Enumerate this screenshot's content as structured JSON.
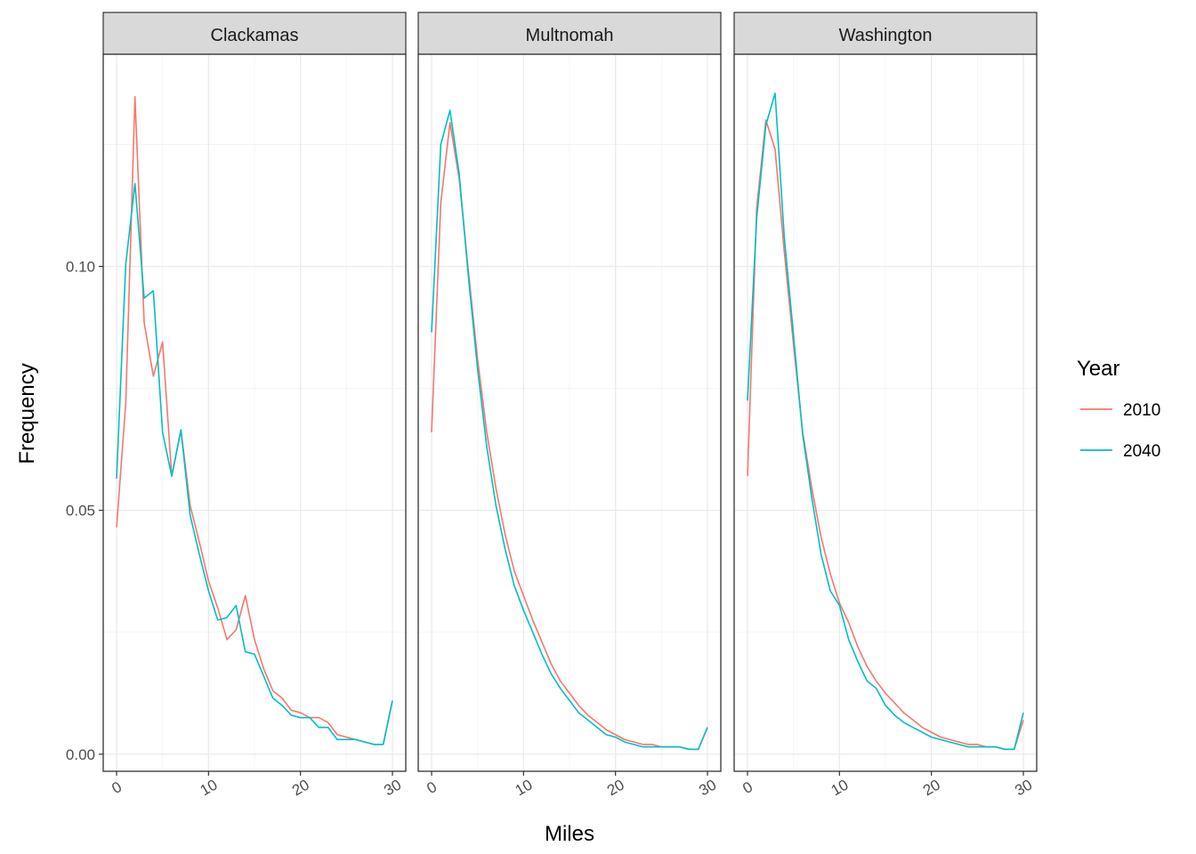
{
  "chart_data": {
    "type": "line",
    "xlabel": "Miles",
    "ylabel": "Frequency",
    "xlim": [
      0,
      30
    ],
    "ylim": [
      0,
      0.14
    ],
    "x_ticks": [
      0,
      10,
      20,
      30
    ],
    "x_tick_labels": [
      "0",
      "10",
      "20",
      "30"
    ],
    "y_ticks": [
      0,
      0.05,
      0.1
    ],
    "y_tick_labels": [
      "0.00",
      "0.05",
      "0.10"
    ],
    "grid": true,
    "legend": {
      "title": "Year",
      "position": "right",
      "entries": [
        {
          "label": "2010",
          "color": "#F8766D"
        },
        {
          "label": "2040",
          "color": "#00BFC4"
        }
      ]
    },
    "x": [
      0,
      1,
      2,
      3,
      4,
      5,
      6,
      7,
      8,
      9,
      10,
      11,
      12,
      13,
      14,
      15,
      16,
      17,
      18,
      19,
      20,
      21,
      22,
      23,
      24,
      25,
      26,
      27,
      28,
      29,
      30
    ],
    "panels": [
      {
        "title": "Clackamas",
        "series": [
          {
            "name": "2010",
            "color": "#F8766D",
            "values": [
              0.0465,
              0.072,
              0.1348,
              0.0885,
              0.0775,
              0.0845,
              0.057,
              0.0665,
              0.051,
              0.0435,
              0.0355,
              0.03,
              0.0235,
              0.0255,
              0.0325,
              0.0235,
              0.0175,
              0.013,
              0.0115,
              0.009,
              0.0085,
              0.0075,
              0.0075,
              0.0065,
              0.004,
              0.0035,
              0.003,
              0.0025,
              0.002,
              0.002,
              0.011
            ]
          },
          {
            "name": "2040",
            "color": "#00BFC4",
            "values": [
              0.0565,
              0.1005,
              0.117,
              0.0935,
              0.095,
              0.066,
              0.057,
              0.0665,
              0.049,
              0.041,
              0.0335,
              0.0275,
              0.028,
              0.0305,
              0.021,
              0.0205,
              0.016,
              0.0115,
              0.01,
              0.008,
              0.0075,
              0.0075,
              0.0055,
              0.0055,
              0.003,
              0.003,
              0.003,
              0.0025,
              0.002,
              0.002,
              0.011
            ]
          }
        ]
      },
      {
        "title": "Multnomah",
        "series": [
          {
            "name": "2010",
            "color": "#F8766D",
            "values": [
              0.066,
              0.113,
              0.1295,
              0.118,
              0.099,
              0.081,
              0.066,
              0.0545,
              0.045,
              0.0375,
              0.0325,
              0.0275,
              0.023,
              0.0185,
              0.015,
              0.0125,
              0.01,
              0.008,
              0.0065,
              0.005,
              0.004,
              0.003,
              0.0025,
              0.002,
              0.002,
              0.0015,
              0.0015,
              0.0015,
              0.001,
              0.001,
              0.0055
            ]
          },
          {
            "name": "2040",
            "color": "#00BFC4",
            "values": [
              0.0865,
              0.125,
              0.132,
              0.119,
              0.098,
              0.079,
              0.063,
              0.051,
              0.042,
              0.0345,
              0.0295,
              0.025,
              0.0205,
              0.0165,
              0.0135,
              0.011,
              0.0085,
              0.007,
              0.0055,
              0.004,
              0.0035,
              0.0025,
              0.002,
              0.0015,
              0.0015,
              0.0015,
              0.0015,
              0.0015,
              0.001,
              0.001,
              0.0055
            ]
          }
        ]
      },
      {
        "title": "Washington",
        "series": [
          {
            "name": "2010",
            "color": "#F8766D",
            "values": [
              0.057,
              0.112,
              0.13,
              0.124,
              0.103,
              0.084,
              0.066,
              0.0545,
              0.0445,
              0.037,
              0.031,
              0.027,
              0.022,
              0.018,
              0.015,
              0.0125,
              0.0105,
              0.0085,
              0.007,
              0.0055,
              0.0045,
              0.0035,
              0.003,
              0.0025,
              0.002,
              0.002,
              0.0015,
              0.0015,
              0.001,
              0.001,
              0.007
            ]
          },
          {
            "name": "2040",
            "color": "#00BFC4",
            "values": [
              0.0725,
              0.11,
              0.129,
              0.1355,
              0.106,
              0.086,
              0.0655,
              0.0525,
              0.041,
              0.0335,
              0.0305,
              0.0235,
              0.019,
              0.015,
              0.0135,
              0.01,
              0.008,
              0.0065,
              0.0055,
              0.0045,
              0.0035,
              0.003,
              0.0025,
              0.002,
              0.0015,
              0.0015,
              0.0015,
              0.0015,
              0.001,
              0.001,
              0.0085
            ]
          }
        ]
      }
    ]
  }
}
